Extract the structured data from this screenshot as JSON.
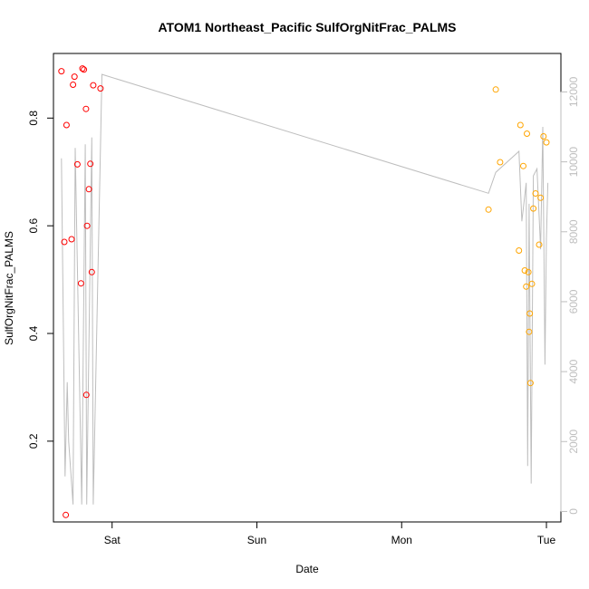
{
  "chart_data": {
    "type": "scatter",
    "title": "ATOM1 Northeast_Pacific SulfOrgNitFrac_PALMS",
    "xlabel": "Date",
    "ylabel": "SulfOrgNitFrac_PALMS",
    "x_ticks": [
      {
        "label": "Sat",
        "value": 1.0
      },
      {
        "label": "Sun",
        "value": 2.0
      },
      {
        "label": "Mon",
        "value": 3.0
      },
      {
        "label": "Tue",
        "value": 4.0
      }
    ],
    "xlim": [
      0.595,
      4.1
    ],
    "ylim": [
      0.05,
      0.92
    ],
    "y_ticks": [
      0.2,
      0.4,
      0.6,
      0.8
    ],
    "y2lim": [
      -300,
      13100
    ],
    "y2_ticks": [
      0,
      2000,
      4000,
      6000,
      8000,
      10000,
      12000
    ],
    "grid": false,
    "colors": {
      "series_1": "#ff0000",
      "series_2": "#ffa500",
      "secondary": "#bebebe"
    },
    "series": [
      {
        "color": "#ff0000",
        "points": [
          [
            0.65,
            0.887
          ],
          [
            0.67,
            0.57
          ],
          [
            0.68,
            0.063
          ],
          [
            0.685,
            0.787
          ],
          [
            0.72,
            0.575
          ],
          [
            0.73,
            0.862
          ],
          [
            0.74,
            0.877
          ],
          [
            0.76,
            0.714
          ],
          [
            0.785,
            0.493
          ],
          [
            0.795,
            0.892
          ],
          [
            0.805,
            0.89
          ],
          [
            0.82,
            0.817
          ],
          [
            0.822,
            0.286
          ],
          [
            0.827,
            0.6
          ],
          [
            0.84,
            0.668
          ],
          [
            0.85,
            0.715
          ],
          [
            0.86,
            0.514
          ],
          [
            0.87,
            0.861
          ],
          [
            0.92,
            0.855
          ]
        ]
      },
      {
        "color": "#ffa500",
        "points": [
          [
            3.6,
            0.63
          ],
          [
            3.65,
            0.853
          ],
          [
            3.68,
            0.718
          ],
          [
            3.81,
            0.554
          ],
          [
            3.82,
            0.787
          ],
          [
            3.84,
            0.711
          ],
          [
            3.85,
            0.517
          ],
          [
            3.86,
            0.487
          ],
          [
            3.865,
            0.771
          ],
          [
            3.875,
            0.514
          ],
          [
            3.88,
            0.403
          ],
          [
            3.885,
            0.437
          ],
          [
            3.89,
            0.308
          ],
          [
            3.9,
            0.492
          ],
          [
            3.91,
            0.632
          ],
          [
            3.925,
            0.66
          ],
          [
            3.95,
            0.565
          ],
          [
            3.96,
            0.652
          ],
          [
            3.98,
            0.766
          ],
          [
            4.0,
            0.755
          ]
        ]
      }
    ],
    "secondary_series": {
      "points": [
        [
          0.65,
          10100
        ],
        [
          0.675,
          1000
        ],
        [
          0.69,
          3700
        ],
        [
          0.7,
          2000
        ],
        [
          0.73,
          200
        ],
        [
          0.745,
          10400
        ],
        [
          0.79,
          200
        ],
        [
          0.815,
          10500
        ],
        [
          0.825,
          200
        ],
        [
          0.86,
          10700
        ],
        [
          0.87,
          200
        ],
        [
          0.93,
          12500
        ],
        [
          3.6,
          9100
        ],
        [
          3.65,
          9700
        ],
        [
          3.81,
          10300
        ],
        [
          3.83,
          8300
        ],
        [
          3.86,
          9400
        ],
        [
          3.87,
          1300
        ],
        [
          3.88,
          8800
        ],
        [
          3.895,
          800
        ],
        [
          3.91,
          9600
        ],
        [
          3.935,
          9800
        ],
        [
          3.96,
          7500
        ],
        [
          3.975,
          11000
        ],
        [
          3.99,
          4200
        ],
        [
          4.0,
          7800
        ],
        [
          4.01,
          9400
        ]
      ]
    }
  }
}
